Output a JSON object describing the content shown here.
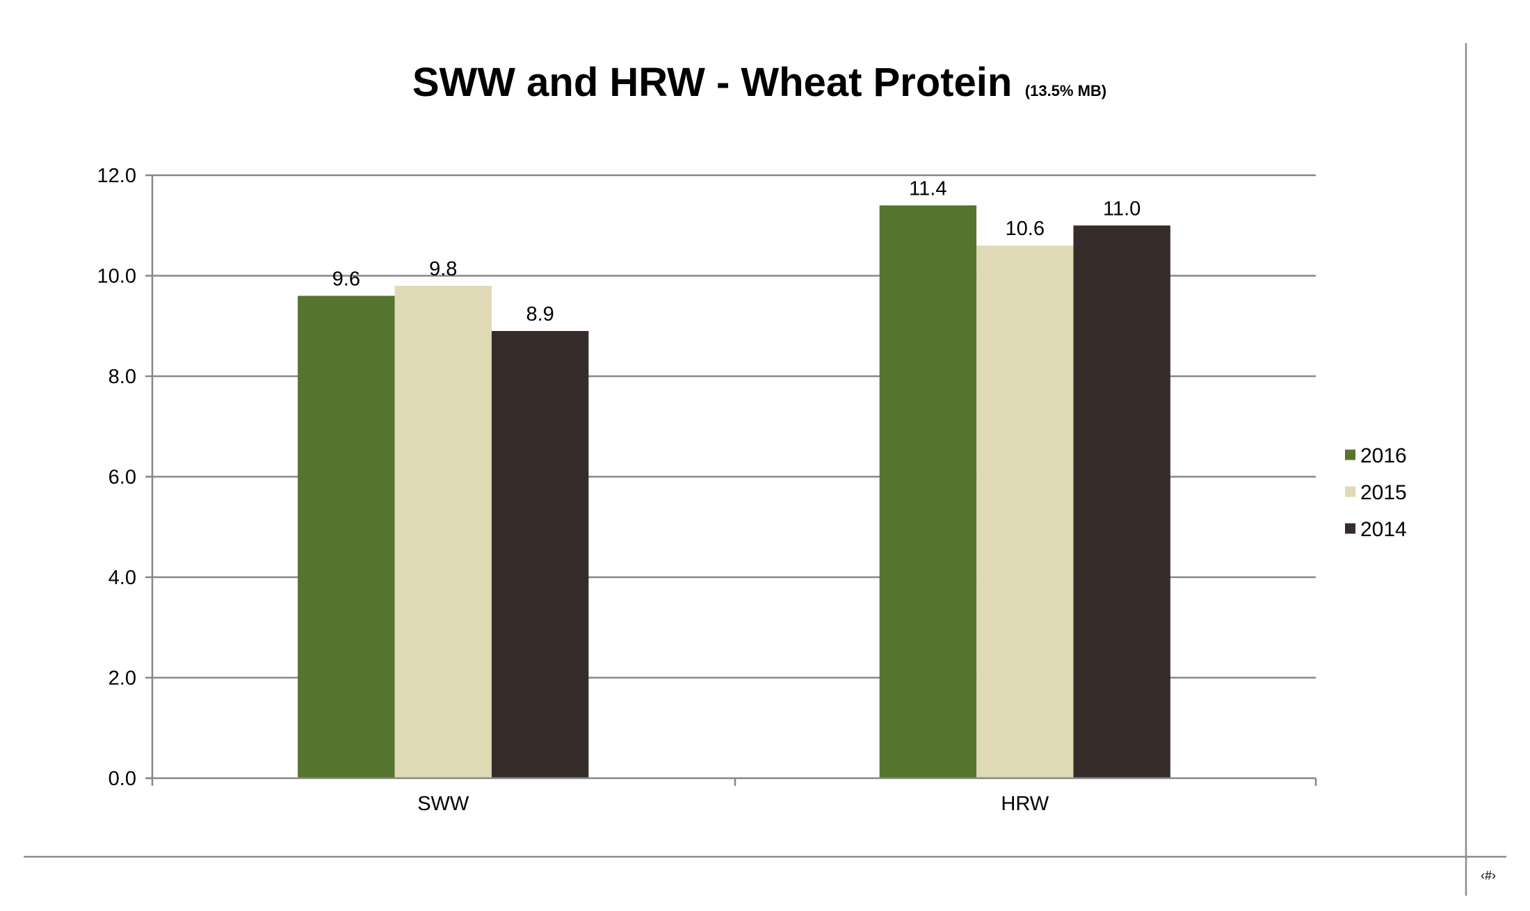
{
  "chart_data": {
    "type": "bar",
    "title": "SWW and HRW - Wheat Protein",
    "subtitle": "(13.5% MB)",
    "xlabel": "",
    "ylabel": "",
    "categories": [
      "SWW",
      "HRW"
    ],
    "series": [
      {
        "name": "2016",
        "color": "#55752f",
        "values": [
          9.6,
          11.4
        ]
      },
      {
        "name": "2015",
        "color": "#e0d9b5",
        "values": [
          9.8,
          10.6
        ]
      },
      {
        "name": "2014",
        "color": "#362d2b",
        "values": [
          8.9,
          11.0
        ]
      }
    ],
    "ylim": [
      0,
      12
    ],
    "y_ticks": [
      "0.0",
      "2.0",
      "4.0",
      "6.0",
      "8.0",
      "10.0",
      "12.0"
    ],
    "grid": true,
    "legend_position": "right"
  },
  "page": {
    "number_label": "‹#›"
  }
}
